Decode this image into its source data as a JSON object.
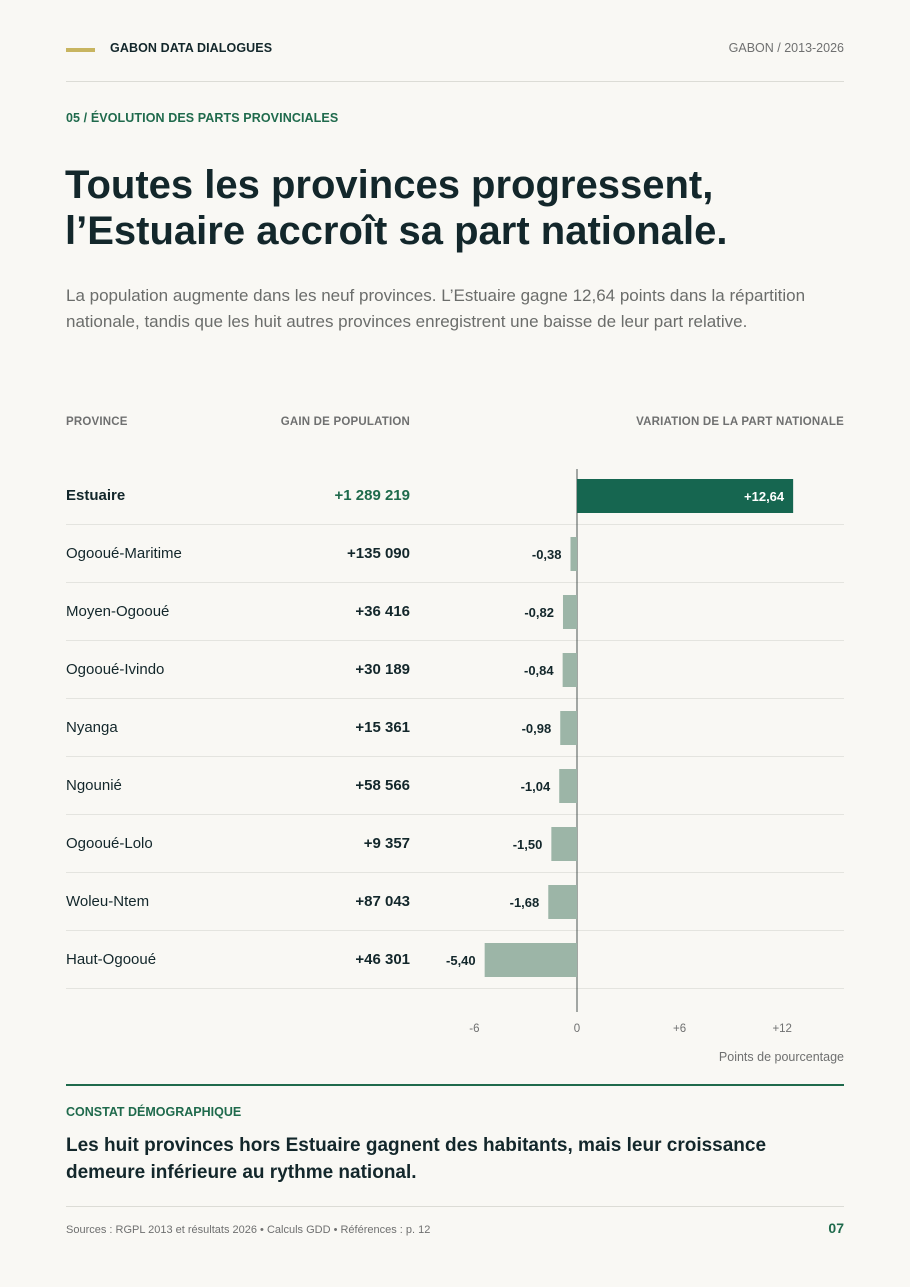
{
  "header": {
    "brand": "GABON DATA DIALOGUES",
    "meta": "GABON / 2013-2026"
  },
  "section_label": "05 / ÉVOLUTION DES PARTS PROVINCIALES",
  "title_lines": [
    "Toutes les provinces progressent,",
    "l’Estuaire accroît sa part nationale."
  ],
  "subtitle": "La population augmente dans les neuf provinces. L’Estuaire gagne 12,64 points dans la répartition nationale, tandis que les huit autres provinces enregistrent une baisse de leur part relative.",
  "columns": {
    "province": "PROVINCE",
    "gain": "GAIN DE POPULATION",
    "variation": "VARIATION DE LA PART NATIONALE"
  },
  "colors": {
    "positive_bar": "#166650",
    "negative_bar": "#9cb5a7",
    "accent_green": "#1f6a4c",
    "accent_gold": "#c8b560"
  },
  "chart_data": {
    "type": "bar",
    "orientation": "horizontal",
    "categories": [
      "Estuaire",
      "Ogooué-Maritime",
      "Moyen-Ogooué",
      "Ogooué-Ivindo",
      "Nyanga",
      "Ngounié",
      "Ogooué-Lolo",
      "Woleu-Ntem",
      "Haut-Ogooué"
    ],
    "gains": [
      "+1 289 219",
      "+135 090",
      "+36 416",
      "+30 189",
      "+15 361",
      "+58 566",
      "+9 357",
      "+87 043",
      "+46 301"
    ],
    "values": [
      12.64,
      -0.38,
      -0.82,
      -0.84,
      -0.98,
      -1.04,
      -1.5,
      -1.68,
      -5.4
    ],
    "value_labels": [
      "+12,64",
      "-0,38",
      "-0,82",
      "-0,84",
      "-0,98",
      "-1,04",
      "-1,50",
      "-1,68",
      "-5,40"
    ],
    "xlim": [
      -6,
      12
    ],
    "ticks": [
      -6,
      0,
      6,
      12
    ],
    "tick_labels": [
      "-6",
      "0",
      "+6",
      "+12"
    ],
    "xlabel": "Points de pourcentage",
    "grid": false
  },
  "insight": {
    "label": "CONSTAT DÉMOGRAPHIQUE",
    "text": "Les huit provinces hors Estuaire gagnent des habitants, mais leur croissance demeure inférieure au rythme national."
  },
  "footer": {
    "sources": "Sources : RGPL 2013 et résultats 2026 • Calculs GDD • Références : p. 12",
    "page": "07"
  }
}
